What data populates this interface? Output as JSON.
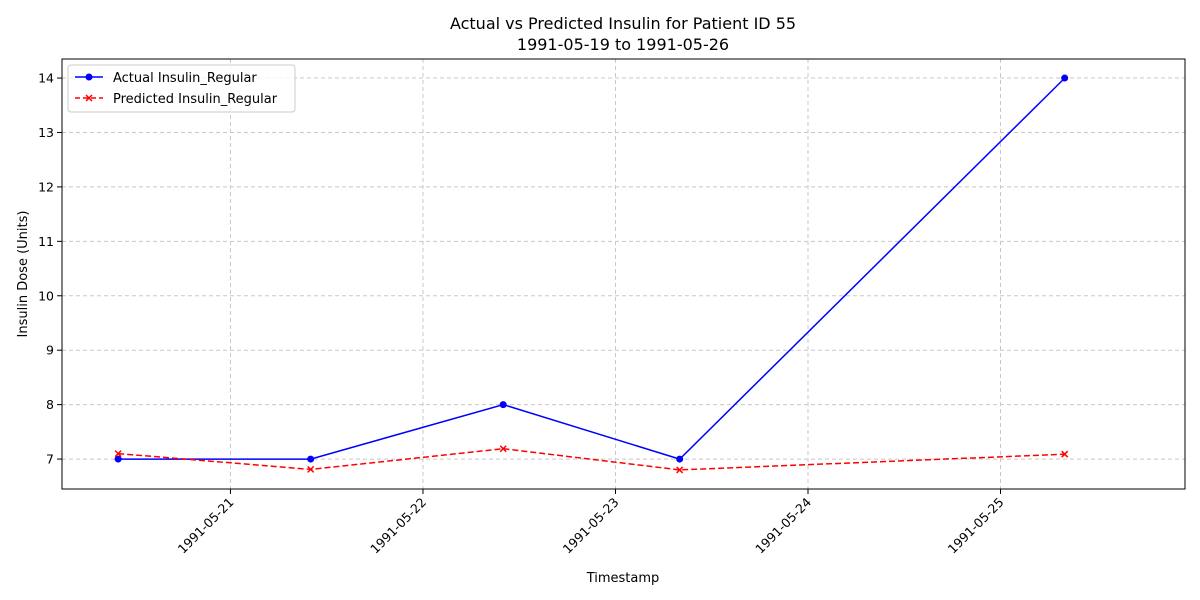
{
  "chart_data": {
    "type": "line",
    "title": "Actual vs Predicted Insulin for Patient ID 55",
    "subtitle": "1991-05-19 to 1991-05-26",
    "xlabel": "Timestamp",
    "ylabel": "Insulin Dose (Units)",
    "x_ticks": [
      "1991-05-21",
      "1991-05-22",
      "1991-05-23",
      "1991-05-24",
      "1991-05-25"
    ],
    "y_ticks": [
      7,
      8,
      9,
      10,
      11,
      12,
      13,
      14
    ],
    "xlim": [
      "1991-05-20 03:00",
      "1991-05-25 23:00"
    ],
    "ylim": [
      6.45,
      14.35
    ],
    "grid": true,
    "legend_position": "top-left",
    "series": [
      {
        "name": "Actual Insulin_Regular",
        "color": "#0000ff",
        "line_style": "solid",
        "marker": "circle",
        "points": [
          {
            "x": "1991-05-20 10:00",
            "y": 7.0
          },
          {
            "x": "1991-05-21 10:00",
            "y": 7.0
          },
          {
            "x": "1991-05-22 10:00",
            "y": 8.0
          },
          {
            "x": "1991-05-23 08:00",
            "y": 7.0
          },
          {
            "x": "1991-05-25 08:00",
            "y": 14.0
          }
        ]
      },
      {
        "name": "Predicted Insulin_Regular",
        "color": "#ff0000",
        "line_style": "dashed",
        "marker": "x",
        "points": [
          {
            "x": "1991-05-20 10:00",
            "y": 7.1
          },
          {
            "x": "1991-05-21 10:00",
            "y": 6.81
          },
          {
            "x": "1991-05-22 10:00",
            "y": 7.19
          },
          {
            "x": "1991-05-23 08:00",
            "y": 6.8
          },
          {
            "x": "1991-05-25 08:00",
            "y": 7.09
          }
        ]
      }
    ]
  }
}
